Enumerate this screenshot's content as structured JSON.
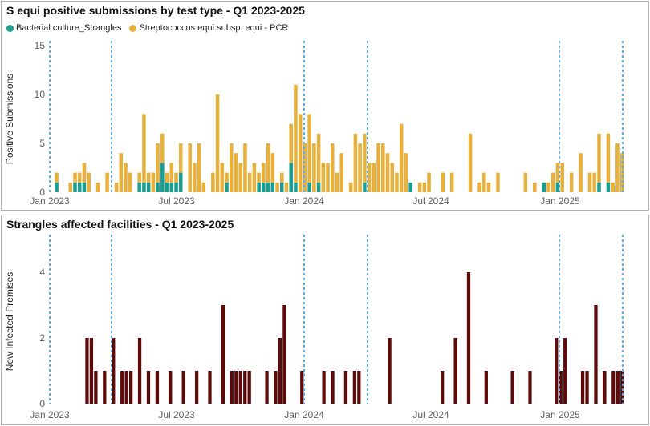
{
  "chart_data": [
    {
      "type": "bar",
      "stacked": true,
      "title": "S equi positive submissions by test type - Q1 2023-2025",
      "ylabel": "Positive Submissions",
      "ylim": [
        0,
        15
      ],
      "yticks": [
        0,
        5,
        10,
        15
      ],
      "xticks": [
        "Jan 2023",
        "Jul 2023",
        "Jan 2024",
        "Jul 2024",
        "Jan 2025"
      ],
      "grid": false,
      "legend_position": "top-left",
      "series": [
        {
          "name": "Bacterial culture_Strangles",
          "color": "#1a9e8f",
          "values": [
            0,
            1,
            0,
            0,
            0,
            1,
            1,
            1,
            0,
            0,
            0,
            0,
            0,
            0,
            0,
            0,
            0,
            0,
            0,
            1,
            1,
            1,
            0,
            1,
            3,
            1,
            1,
            1,
            2,
            0,
            0,
            0,
            0,
            0,
            0,
            0,
            0,
            0,
            1,
            0,
            0,
            0,
            0,
            0,
            0,
            1,
            1,
            1,
            1,
            0,
            1,
            0,
            3,
            1,
            0,
            0,
            1,
            0,
            1,
            0,
            0,
            0,
            0,
            0,
            0,
            0,
            0,
            0,
            1,
            0,
            0,
            0,
            0,
            0,
            0,
            0,
            0,
            0,
            1,
            0,
            0,
            0,
            0,
            0,
            0,
            0,
            0,
            0,
            0,
            0,
            0,
            0,
            0,
            0,
            0,
            0,
            0,
            0,
            0,
            0,
            0,
            0,
            0,
            0,
            0,
            0,
            0,
            1,
            0,
            0,
            1,
            0,
            0,
            0,
            0,
            0,
            0,
            0,
            0,
            1,
            0,
            1,
            0,
            0,
            0
          ]
        },
        {
          "name": "Streptococcus equi subsp. equi - PCR",
          "color": "#e8b03c",
          "values": [
            0,
            1,
            0,
            0,
            1,
            1,
            1,
            2,
            2,
            0,
            1,
            0,
            2,
            0,
            1,
            4,
            3,
            2,
            0,
            1,
            7,
            1,
            2,
            4,
            3,
            1,
            2,
            1,
            3,
            0,
            5,
            3,
            5,
            1,
            0,
            2,
            10,
            3,
            1,
            5,
            4,
            3,
            5,
            2,
            3,
            1,
            2,
            4,
            3,
            1,
            1,
            1,
            4,
            10,
            8,
            5,
            7,
            5,
            5,
            3,
            3,
            5,
            2,
            4,
            0,
            1,
            6,
            5,
            5,
            3,
            3,
            5,
            5,
            4,
            3,
            2,
            7,
            4,
            0,
            0,
            1,
            1,
            2,
            0,
            0,
            2,
            0,
            2,
            0,
            0,
            0,
            6,
            0,
            1,
            2,
            1,
            0,
            2,
            0,
            0,
            0,
            0,
            0,
            2,
            0,
            1,
            0,
            0,
            1,
            2,
            2,
            3,
            0,
            2,
            0,
            4,
            0,
            2,
            2,
            5,
            0,
            5,
            1,
            5,
            4
          ]
        }
      ]
    },
    {
      "type": "bar",
      "title": "Strangles affected facilities - Q1 2023-2025",
      "ylabel": "New Infected Premises",
      "ylim": [
        0,
        5
      ],
      "yticks": [
        0,
        2,
        4
      ],
      "xticks": [
        "Jan 2023",
        "Jul 2023",
        "Jan 2024",
        "Jul 2024",
        "Jan 2025"
      ],
      "grid": false,
      "series": [
        {
          "name": "",
          "color": "#5c0a0a",
          "values": [
            0,
            0,
            0,
            0,
            0,
            0,
            0,
            0,
            2,
            2,
            1,
            0,
            1,
            0,
            2,
            0,
            1,
            1,
            1,
            0,
            2,
            0,
            1,
            0,
            1,
            0,
            0,
            1,
            0,
            0,
            1,
            0,
            0,
            1,
            0,
            0,
            1,
            0,
            0,
            3,
            0,
            1,
            1,
            1,
            1,
            1,
            0,
            0,
            0,
            1,
            0,
            1,
            2,
            3,
            0,
            0,
            0,
            1,
            0,
            0,
            0,
            0,
            1,
            0,
            1,
            0,
            0,
            1,
            0,
            1,
            1,
            0,
            0,
            0,
            0,
            0,
            0,
            2,
            0,
            0,
            0,
            0,
            0,
            0,
            0,
            0,
            0,
            0,
            0,
            1,
            0,
            0,
            2,
            0,
            0,
            4,
            0,
            0,
            0,
            1,
            0,
            0,
            0,
            0,
            0,
            1,
            0,
            0,
            0,
            1,
            0,
            0,
            0,
            0,
            0,
            2,
            1,
            2,
            0,
            0,
            0,
            1,
            1,
            0,
            3,
            0,
            1,
            0,
            1,
            1,
            1
          ]
        }
      ]
    }
  ]
}
